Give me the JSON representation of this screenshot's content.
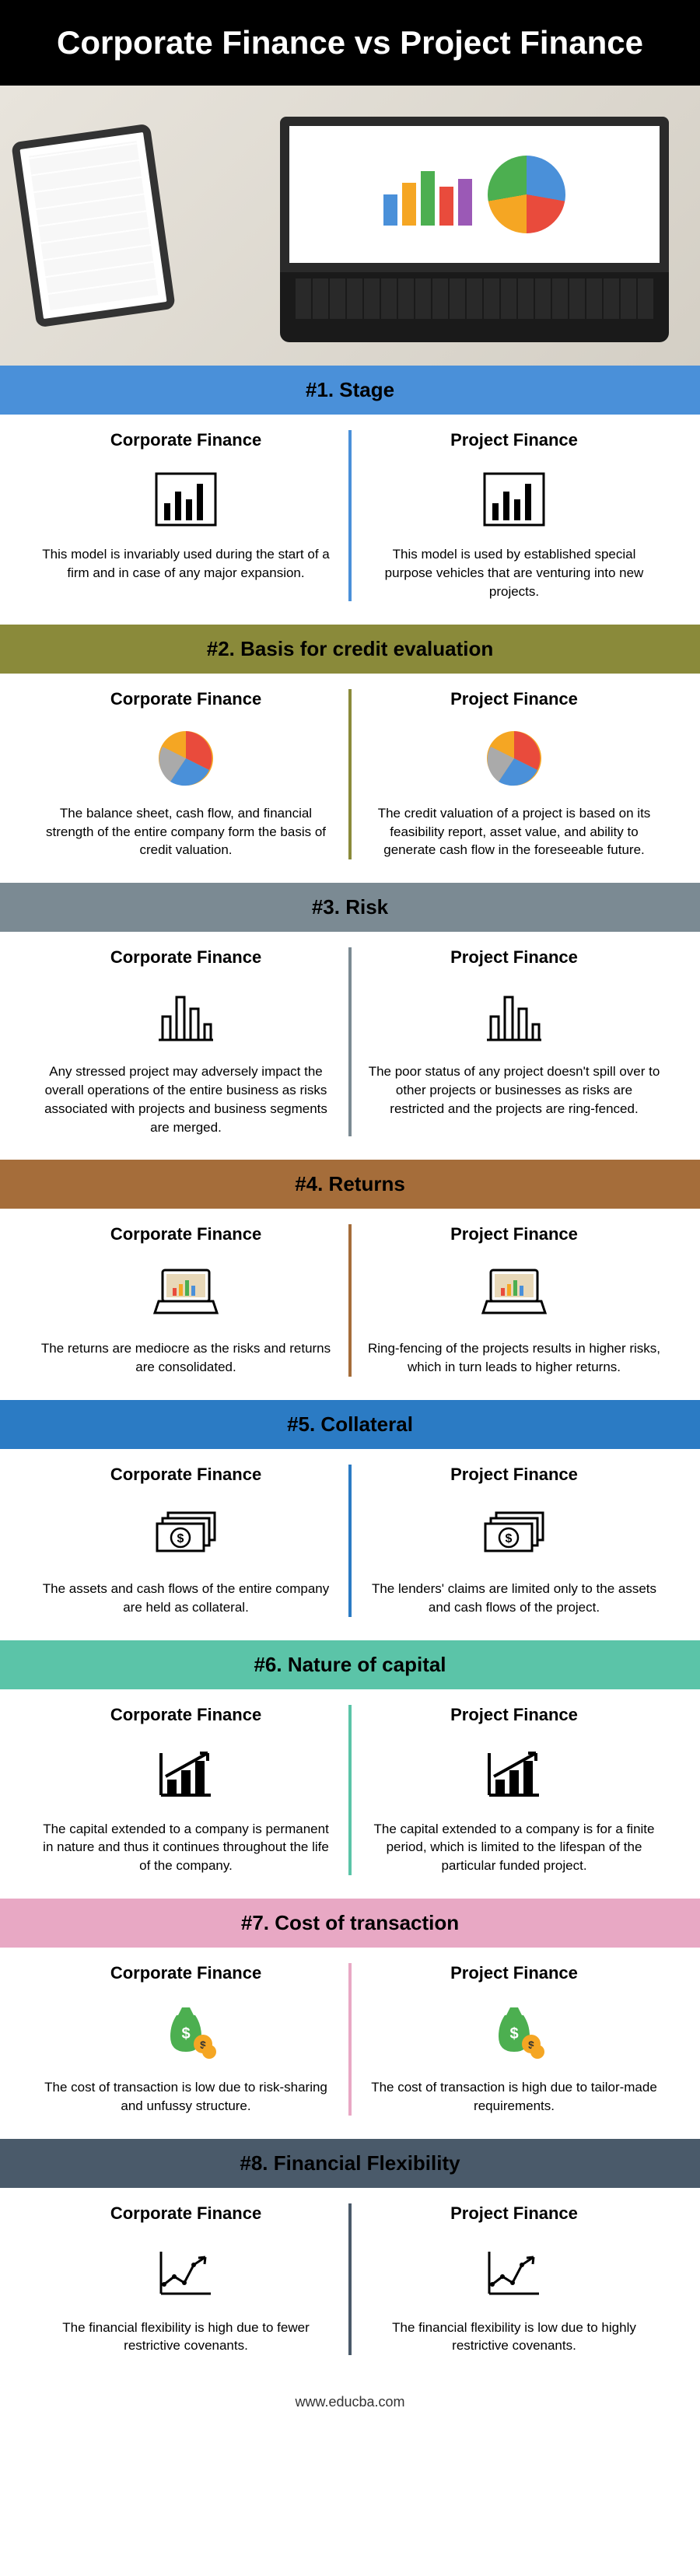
{
  "title": "Corporate Finance vs Project Finance",
  "footer": "www.educba.com",
  "col_left_label": "Corporate Finance",
  "col_right_label": "Project Finance",
  "hero": {
    "bar_colors": [
      "#4a90d9",
      "#f5a623",
      "#4caf50",
      "#e94b3c",
      "#9b59b6"
    ],
    "bar_heights": [
      40,
      55,
      70,
      50,
      60
    ]
  },
  "sections": [
    {
      "num": "#1.",
      "title": "Stage",
      "header_color": "#4a90d9",
      "divider_color": "#4a90d9",
      "icon": "barchart",
      "left": "This model is invariably used during the start of a firm and in case of any major expansion.",
      "right": "This model is used by established special purpose vehicles that are venturing into new projects."
    },
    {
      "num": "#2.",
      "title": "Basis for credit evaluation",
      "header_color": "#8a8a3a",
      "divider_color": "#8a8a3a",
      "icon": "piechart",
      "left": "The balance sheet, cash flow, and financial strength of the entire company form the basis of credit valuation.",
      "right": "The credit valuation of a project is based on its feasibility report, asset value, and ability to generate cash flow in the foreseeable future."
    },
    {
      "num": "#3.",
      "title": "Risk",
      "header_color": "#7b8a93",
      "divider_color": "#7b8a93",
      "icon": "bars",
      "left": "Any stressed project may adversely impact the overall operations of the entire business as risks associated with projects and business segments are merged.",
      "right": "The poor status of any project doesn't spill over to other projects or businesses as risks are restricted and the projects are ring-fenced."
    },
    {
      "num": "#4.",
      "title": "Returns",
      "header_color": "#a56d3a",
      "divider_color": "#a56d3a",
      "icon": "laptop",
      "left": "The returns are mediocre as the risks and returns are consolidated.",
      "right": "Ring-fencing of the projects results in higher risks, which in turn leads to higher returns."
    },
    {
      "num": "#5.",
      "title": "Collateral",
      "header_color": "#2b7bc4",
      "divider_color": "#2b7bc4",
      "icon": "money",
      "left": "The assets and cash flows of the entire company are held as collateral.",
      "right": "The lenders' claims are limited only to the assets and cash flows of the project."
    },
    {
      "num": "#6.",
      "title": "Nature of capital",
      "header_color": "#5bc4a8",
      "divider_color": "#5bc4a8",
      "icon": "growth",
      "left": "The capital extended to a company is permanent in nature and thus it continues throughout the life of the company.",
      "right": "The capital extended to a company is for a finite period, which is limited to the lifespan of the particular funded project."
    },
    {
      "num": "#7.",
      "title": "Cost of transaction",
      "header_color": "#e8a8c4",
      "divider_color": "#e8a8c4",
      "icon": "moneybag",
      "left": "The cost of transaction is low due to risk-sharing and unfussy structure.",
      "right": "The cost of transaction is high due to tailor-made requirements."
    },
    {
      "num": "#8.",
      "title": "Financial Flexibility",
      "header_color": "#4a5a6a",
      "divider_color": "#4a5a6a",
      "icon": "trend",
      "left": "The financial flexibility is high due to fewer restrictive covenants.",
      "right": "The financial flexibility is low due to highly restrictive covenants."
    }
  ]
}
